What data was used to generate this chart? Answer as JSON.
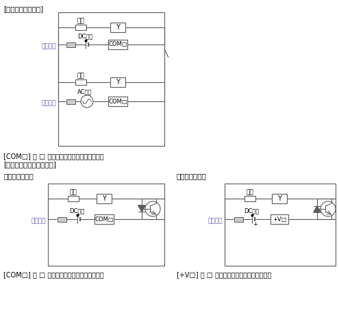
{
  "bg_color": "#ffffff",
  "line_color": "#5a5a5a",
  "text_color": "#000000",
  "label_color": "#6655aa",
  "title1": "[リレー出力タイプ]",
  "title2": "[トランジスタ出力タイプ]",
  "sink_label": "シンク出力配線",
  "source_label": "ソース出力配線",
  "caption1": "[COM□] の □ には、コモン番号が入ります。",
  "caption2": "[COM□] の □ には、コモン番号が入ります。",
  "caption3": "[+V□] の □ には、コモン番号が入ります。",
  "fuse_label": "ヒューズ",
  "dc_label": "DC電源",
  "ac_label": "AC電源",
  "load_label": "負荷",
  "Y_label": "Y",
  "com_label": "COM□",
  "vcom_label": "+V□",
  "plus_label": "+"
}
